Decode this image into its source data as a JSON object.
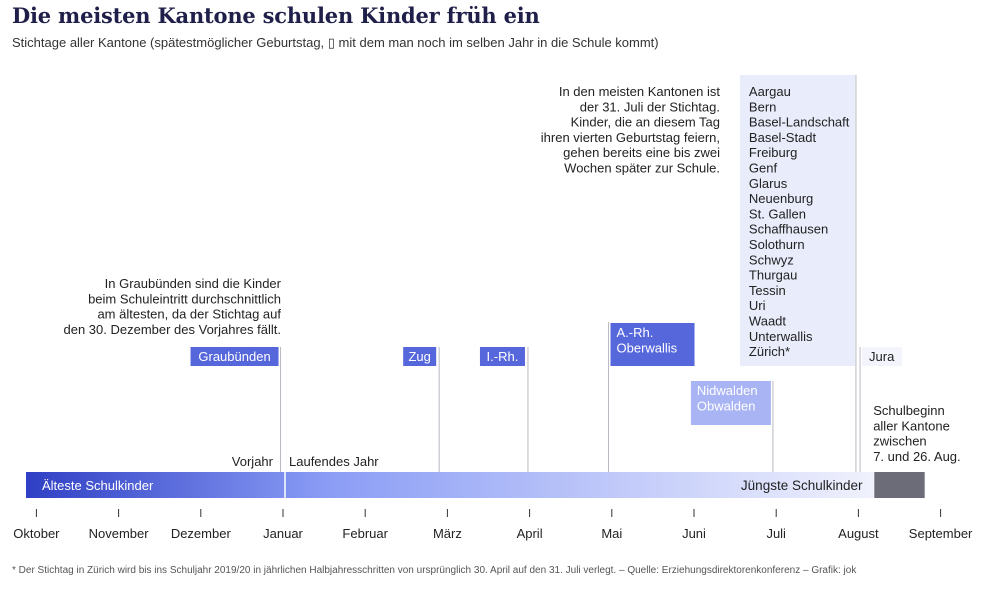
{
  "header": {
    "title": "Die meisten Kantone schulen Kinder früh ein",
    "subtitle": "Stichtage aller Kantone (spätestmöglicher Geburtstag, ▯ mit dem man noch im selben Jahr in die Schule kommt)"
  },
  "chart_data": {
    "type": "timeline",
    "x_unit": "month",
    "x_ticks": [
      {
        "label": "Oktober",
        "pos": -3
      },
      {
        "label": "November",
        "pos": -2
      },
      {
        "label": "Dezember",
        "pos": -1
      },
      {
        "label": "Januar",
        "pos": 0
      },
      {
        "label": "Februar",
        "pos": 1
      },
      {
        "label": "März",
        "pos": 2
      },
      {
        "label": "April",
        "pos": 3
      },
      {
        "label": "Mai",
        "pos": 4
      },
      {
        "label": "Juni",
        "pos": 5
      },
      {
        "label": "Juli",
        "pos": 6
      },
      {
        "label": "August",
        "pos": 7
      },
      {
        "label": "September",
        "pos": 8
      }
    ],
    "period_labels": {
      "previous_year": "Vorjahr",
      "current_year": "Laufendes Jahr"
    },
    "bar_labels": {
      "oldest": "Älteste Schulkinder",
      "youngest": "Jüngste Schulkinder"
    },
    "cutoffs": [
      {
        "date": "30. Dezember (Vorjahr)",
        "pos": -0.03,
        "cantons": [
          "Graubünden"
        ]
      },
      {
        "date": "28. Februar",
        "pos": 1.9,
        "cantons": [
          "Zug"
        ]
      },
      {
        "date": "31. März",
        "pos": 2.98,
        "cantons": [
          "I.-Rh."
        ]
      },
      {
        "date": "30. April",
        "pos": 3.96,
        "cantons": [
          "A.-Rh.",
          "Oberwallis"
        ]
      },
      {
        "date": "30. Juni",
        "pos": 5.96,
        "cantons": [
          "Nidwalden",
          "Obwalden"
        ]
      },
      {
        "date": "31. Juli",
        "pos": 6.97,
        "cantons": [
          "Aargau",
          "Bern",
          "Basel-Landschaft",
          "Basel-Stadt",
          "Freiburg",
          "Genf",
          "Glarus",
          "Neuenburg",
          "St. Gallen",
          "Schaffhausen",
          "Solothurn",
          "Schwyz",
          "Thurgau",
          "Tessin",
          "Uri",
          "Waadt",
          "Unterwallis",
          "Zürich*"
        ]
      },
      {
        "date": "31. Juli (Jura)",
        "pos": 7.02,
        "cantons": [
          "Jura"
        ]
      }
    ],
    "school_start": {
      "from_day": 7,
      "to_day": 26,
      "month": "August"
    },
    "colors": {
      "bar_start": "#2f3fc4",
      "bar_mid": "#8a9cf5",
      "bar_end": "#f2f3fd",
      "label_dark": "#5567db",
      "label_light": "#a9b4f4",
      "label_pale": "#e9ecfb",
      "school_start_bar": "#6c6c78",
      "gridline": "#b9b9c2"
    }
  },
  "annotations": {
    "graubuenden": [
      "In Graubünden sind die Kinder",
      "beim Schuleintritt durchschnittlich",
      "am ältesten, da der Stichtag auf",
      "den 30. Dezember des Vorjahres fällt."
    ],
    "juli": [
      "In den meisten Kantonen ist",
      "der 31. Juli der Stichtag.",
      "Kinder, die an diesem Tag",
      "ihren vierten Geburtstag feiern,",
      "gehen bereits eine bis zwei",
      "Wochen später zur Schule."
    ],
    "school_start": [
      "Schulbeginn",
      "aller Kantone",
      "zwischen",
      "7. und 26. Aug."
    ]
  },
  "footer": {
    "footnote": "* Der Stichtag in Zürich wird bis ins Schuljahr 2019/20 in jährlichen Halbjahresschritten von ursprünglich 30. April auf den 31. Juli verlegt. –  Quelle: Erziehungsdirektorenkonferenz – Grafik: jok"
  }
}
